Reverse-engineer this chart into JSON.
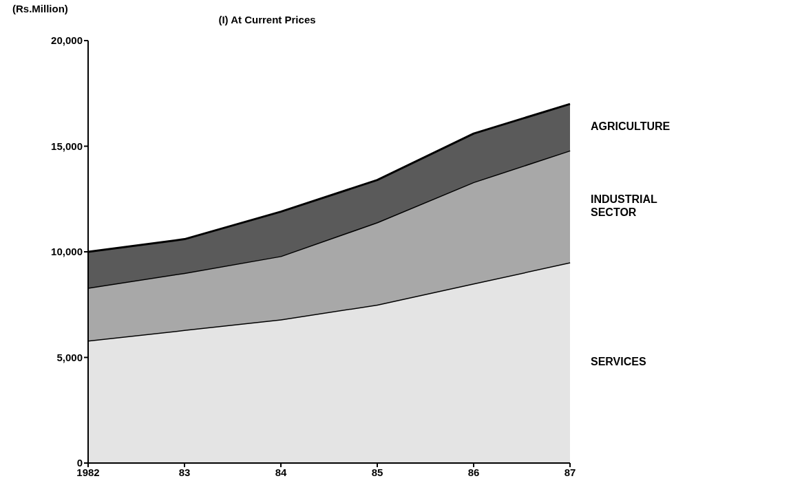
{
  "chart_data": {
    "type": "area",
    "title": "(I) At Current Prices",
    "ylabel": "(Rs.Million)",
    "categories": [
      "1982",
      "83",
      "84",
      "85",
      "86",
      "87"
    ],
    "stacked": true,
    "series": [
      {
        "name": "SERVICES",
        "color": "#e4e4e4",
        "values": [
          5800,
          6300,
          6800,
          7500,
          8500,
          9500
        ]
      },
      {
        "name": "INDUSTRIAL SECTOR",
        "color": "#a8a8a8",
        "values": [
          2500,
          2700,
          3000,
          3900,
          4800,
          5300
        ]
      },
      {
        "name": "AGRICULTURE",
        "color": "#5a5a5a",
        "values": [
          1700,
          1600,
          2100,
          2000,
          2300,
          2200
        ]
      }
    ],
    "ylim": [
      0,
      20000
    ],
    "yticks": [
      0,
      {
        "value": 5000,
        "label": "5,000"
      },
      {
        "value": 10000,
        "label": "10,000"
      },
      {
        "value": 15000,
        "label": "15,000"
      },
      {
        "value": 20000,
        "label": "20,000"
      }
    ],
    "marker": "none",
    "line_style": "solid"
  }
}
